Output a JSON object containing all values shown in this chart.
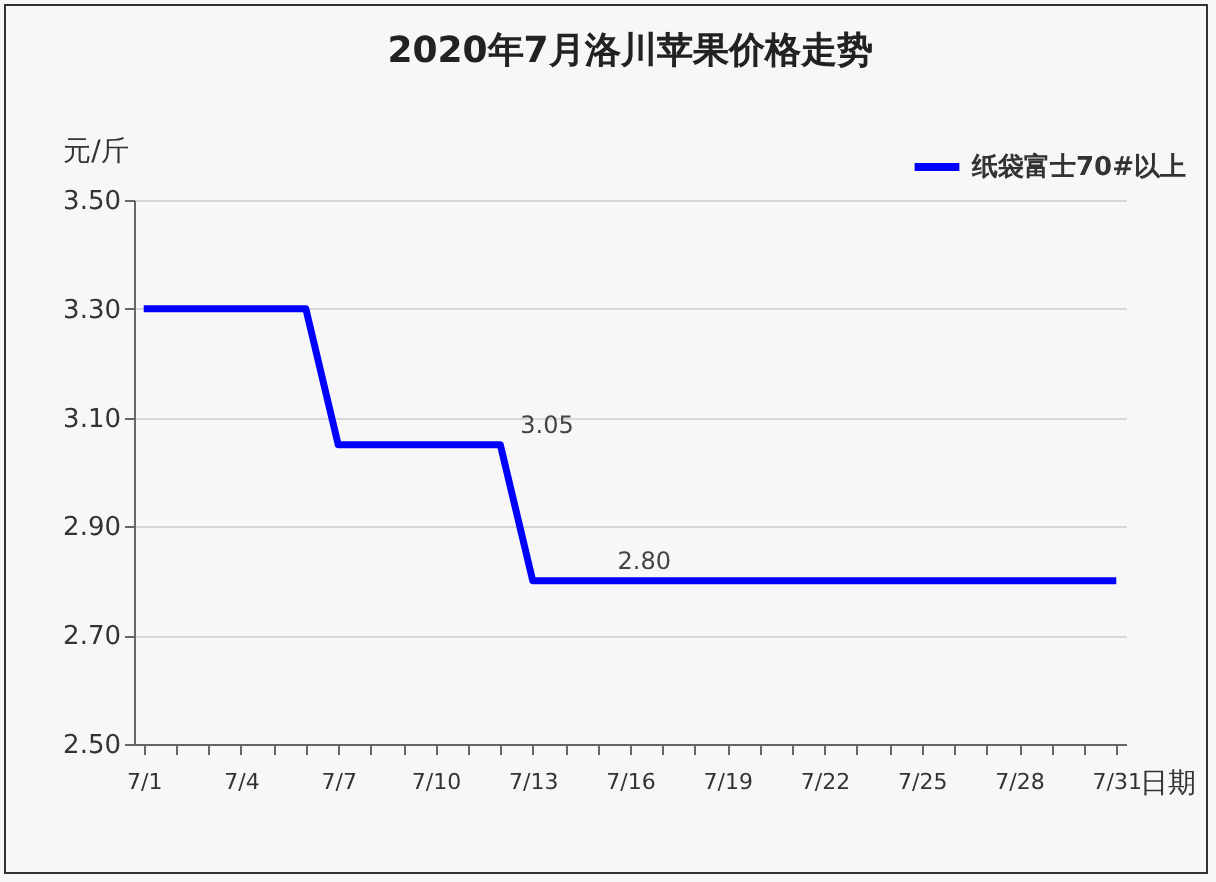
{
  "chart_data": {
    "type": "line",
    "title": "2020年7月洛川苹果价格走势",
    "xlabel": "日期",
    "ylabel": "元/斤",
    "categories": [
      "7/1",
      null,
      null,
      "7/4",
      null,
      null,
      "7/7",
      null,
      null,
      "7/10",
      null,
      null,
      "7/13",
      null,
      null,
      "7/16",
      null,
      null,
      "7/19",
      null,
      null,
      "7/22",
      null,
      null,
      "7/25",
      null,
      null,
      "7/28",
      null,
      null,
      "7/31"
    ],
    "series": [
      {
        "name": "纸袋富士70#以上",
        "color": "#0000ff",
        "values": [
          3.3,
          3.3,
          3.3,
          3.3,
          3.3,
          3.3,
          3.05,
          3.05,
          3.05,
          3.05,
          3.05,
          3.05,
          2.8,
          2.8,
          2.8,
          2.8,
          2.8,
          2.8,
          2.8,
          2.8,
          2.8,
          2.8,
          2.8,
          2.8,
          2.8,
          2.8,
          2.8,
          2.8,
          2.8,
          2.8,
          2.8
        ],
        "value_labels": [
          null,
          null,
          null,
          null,
          null,
          null,
          null,
          null,
          null,
          null,
          null,
          "3.05",
          null,
          null,
          "2.80",
          null,
          null,
          null,
          null,
          null,
          null,
          null,
          null,
          null,
          null,
          null,
          null,
          null,
          null,
          null,
          null
        ]
      }
    ],
    "ylim": [
      2.5,
      3.5
    ],
    "yticks": [
      {
        "value": 2.5,
        "label": "2.50"
      },
      {
        "value": 2.7,
        "label": "2.70"
      },
      {
        "value": 2.9,
        "label": "2.90"
      },
      {
        "value": 3.1,
        "label": "3.10"
      },
      {
        "value": 3.3,
        "label": "3.30"
      },
      {
        "value": 3.5,
        "label": "3.50"
      }
    ],
    "grid": "y",
    "legend": "top right",
    "marker": "none",
    "line_style": "solid"
  }
}
